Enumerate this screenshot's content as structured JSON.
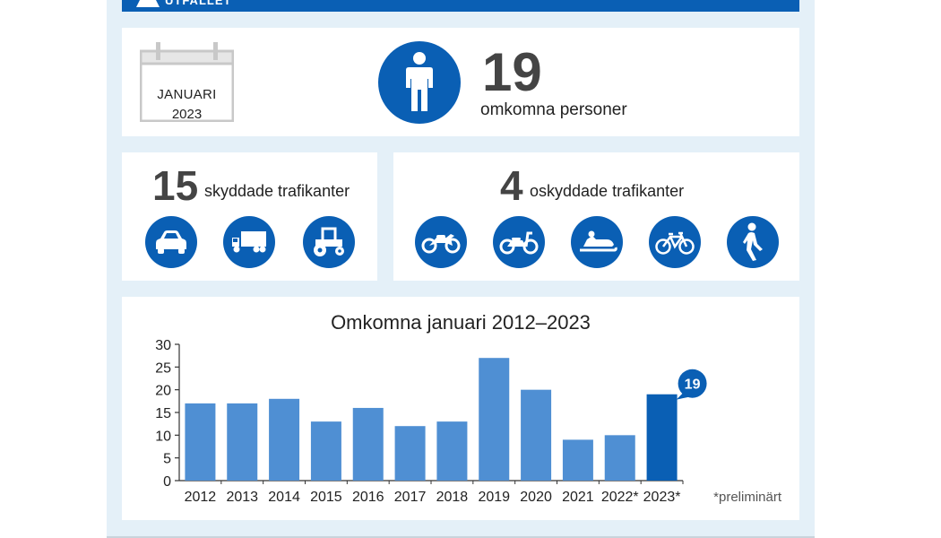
{
  "banner": {
    "label": "UTFALLET"
  },
  "summary": {
    "calendar_month": "JANUARI",
    "calendar_year": "2023",
    "total_number": "19",
    "total_label": "omkomna personer",
    "person_icon": "person-icon"
  },
  "protected": {
    "number": "15",
    "label": "skyddade trafikanter",
    "icons": [
      "car-icon",
      "truck-icon",
      "tractor-icon"
    ]
  },
  "unprotected": {
    "number": "4",
    "label": "oskyddade trafikanter",
    "icons": [
      "motorcycle-icon",
      "moped-icon",
      "snowmobile-icon",
      "bicycle-icon",
      "pedestrian-icon"
    ]
  },
  "colors": {
    "brand_blue": "#0a5fb4",
    "bar_light": "#4f8fd3",
    "bar_dark": "#0a5fb4",
    "background": "#e4f0f8"
  },
  "chart_data": {
    "type": "bar",
    "title": "Omkomna januari 2012–2023",
    "categories": [
      "2012",
      "2013",
      "2014",
      "2015",
      "2016",
      "2017",
      "2018",
      "2019",
      "2020",
      "2021",
      "2022*",
      "2023*"
    ],
    "values": [
      17,
      17,
      18,
      13,
      16,
      12,
      13,
      27,
      20,
      9,
      10,
      19
    ],
    "highlight_index": 11,
    "highlight_label": "19",
    "yticks": [
      "0",
      "5",
      "10",
      "15",
      "20",
      "25",
      "30"
    ],
    "ylim": [
      0,
      30
    ],
    "xlabel": "",
    "ylabel": "",
    "grid": false,
    "footnote": "*preliminärt"
  }
}
